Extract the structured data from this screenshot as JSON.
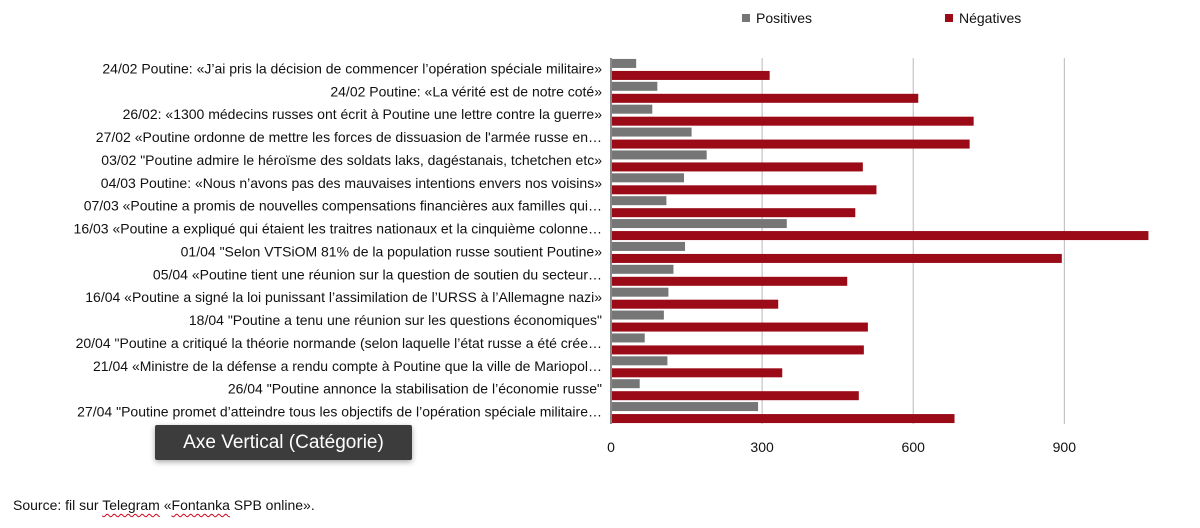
{
  "chart_data": {
    "type": "bar",
    "orientation": "horizontal",
    "categories": [
      "24/02 Poutine: «J’ai pris la décision de commencer l’opération spéciale militaire»",
      "24/02 Poutine: «La vérité est de notre coté»",
      "26/02: «1300 médecins russes ont écrit  à Poutine une lettre contre la guerre»",
      "27/02 «Poutine ordonne de mettre les forces de dissuasion de l'armée russe en…",
      "03/02 \"Poutine admire le héroïsme des soldats laks, dagéstanais, tchetchen etc»",
      "04/03 Poutine: «Nous n’avons pas des mauvaises intentions envers nos voisins»",
      "07/03 «Poutine a promis de nouvelles compensations financières aux familles qui…",
      "16/03 «Poutine a expliqué qui étaient les traitres nationaux et la cinquième colonne…",
      "01/04 \"Selon VTSiOM 81% de la population russe soutient Poutine»",
      "05/04 «Poutine tient une réunion sur la question de soutien du secteur…",
      "16/04 «Poutine a signé la loi punissant l’assimilation de l’URSS à l’Allemagne nazi»",
      "18/04 \"Poutine a tenu une réunion sur les questions économiques\"",
      "20/04 \"Poutine a critiqué la théorie normande (selon laquelle l’état russe a été crée…",
      "21/04  «Ministre de la défense a rendu compte à Poutine que la ville de Mariopol…",
      "26/04 \"Poutine annonce la stabilisation de l’économie russe\"",
      "27/04 \"Poutine promet d’atteindre tous les objectifs de l’opération spéciale militaire…"
    ],
    "series": [
      {
        "name": "Positives",
        "color": "#767676",
        "values": [
          48,
          90,
          80,
          158,
          188,
          143,
          108,
          347,
          145,
          122,
          112,
          103,
          65,
          110,
          55,
          290
        ]
      },
      {
        "name": "Négatives",
        "color": "#9b0a17",
        "values": [
          313,
          608,
          718,
          710,
          498,
          525,
          483,
          1065,
          893,
          467,
          330,
          508,
          500,
          338,
          490,
          680
        ]
      }
    ],
    "xlim": [
      0,
      1080
    ],
    "xticks": [
      0,
      300,
      600,
      900
    ],
    "grid": true,
    "legend_position": "top"
  },
  "tooltip": {
    "text": "Axe Vertical (Catégorie)"
  },
  "source": {
    "prefix": "Source: fil sur ",
    "word1": "Telegram",
    "middle": " «",
    "word2": "Fontanka",
    "suffix": " SPB online»."
  }
}
